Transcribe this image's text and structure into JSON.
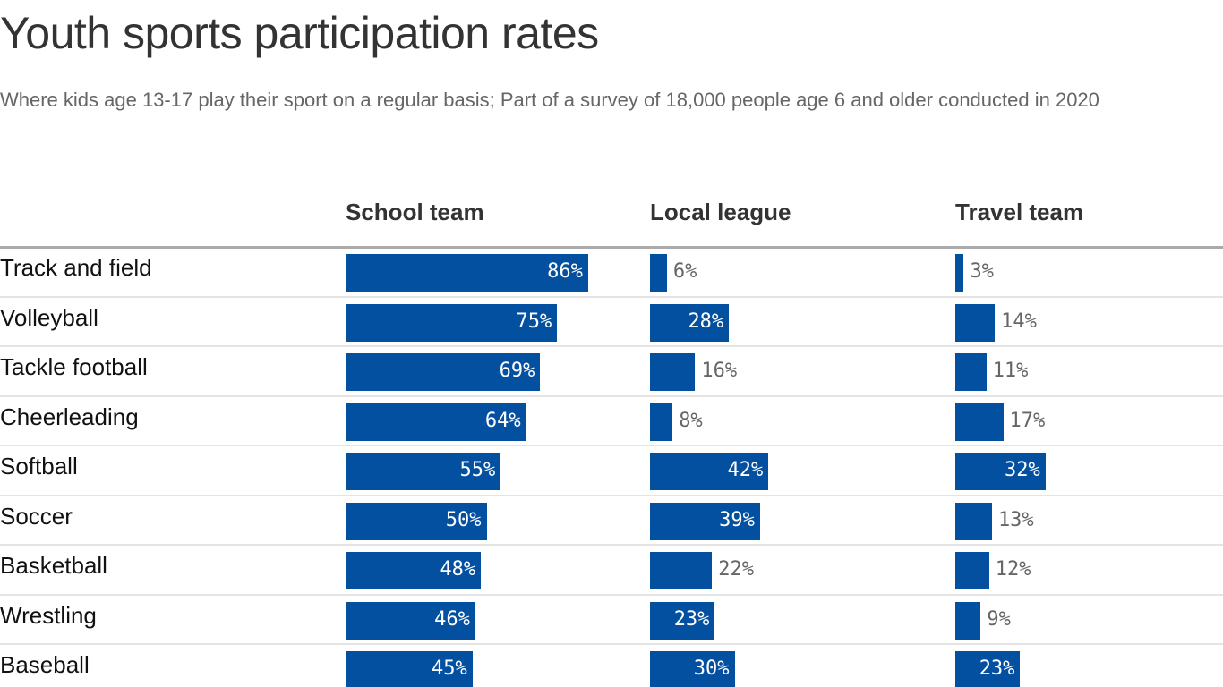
{
  "chart_data": {
    "type": "bar",
    "title": "Youth sports participation rates",
    "subtitle": "Where kids age 13-17 play their sport on a regular basis; Part of a survey of 18,000 people age 6 and older conducted in 2020",
    "categories": [
      "Track and field",
      "Volleyball",
      "Tackle football",
      "Cheerleading",
      "Softball",
      "Soccer",
      "Basketball",
      "Wrestling",
      "Baseball"
    ],
    "series": [
      {
        "name": "School team",
        "values": [
          86,
          75,
          69,
          64,
          55,
          50,
          48,
          46,
          45
        ]
      },
      {
        "name": "Local league",
        "values": [
          6,
          28,
          16,
          8,
          42,
          39,
          22,
          23,
          30
        ]
      },
      {
        "name": "Travel team",
        "values": [
          3,
          14,
          11,
          17,
          32,
          13,
          12,
          9,
          23
        ]
      }
    ],
    "unit": "%",
    "xlim": [
      0,
      100
    ],
    "bar_color": "#0450a0"
  }
}
